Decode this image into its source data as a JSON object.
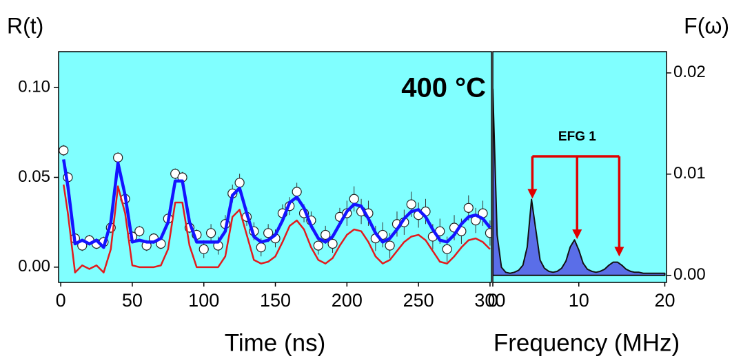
{
  "chart_data": [
    {
      "type": "line",
      "ylabel": "R(t)",
      "xlabel": "Time (ns)",
      "background": "#80ffff",
      "annotation": {
        "text": "400 °C"
      },
      "xlim": [
        -1.5,
        301
      ],
      "xticks": [
        0,
        50,
        100,
        150,
        200,
        250,
        300
      ],
      "ylim": [
        -0.0085,
        0.12
      ],
      "yticks": [
        {
          "value": 0,
          "label": "0.00"
        },
        0.05,
        {
          "value": 0.1,
          "label": "0.10"
        }
      ],
      "x": [
        2,
        5,
        10,
        15,
        20,
        25,
        30,
        35,
        40,
        45,
        50,
        55,
        60,
        65,
        70,
        75,
        80,
        85,
        90,
        95,
        100,
        105,
        110,
        115,
        120,
        125,
        130,
        135,
        140,
        145,
        150,
        155,
        160,
        165,
        170,
        175,
        180,
        185,
        190,
        195,
        200,
        205,
        210,
        215,
        220,
        225,
        230,
        235,
        240,
        245,
        250,
        255,
        260,
        265,
        270,
        275,
        280,
        285,
        290,
        295,
        300
      ],
      "series": [
        {
          "type": "scatter",
          "color": "#ffffff",
          "values": [
            0.065,
            0.05,
            0.016,
            0.012,
            0.015,
            0.013,
            0.014,
            0.022,
            0.061,
            0.038,
            0.017,
            0.02,
            0.012,
            0.016,
            0.013,
            0.027,
            0.052,
            0.05,
            0.022,
            0.018,
            0.01,
            0.019,
            0.012,
            0.024,
            0.041,
            0.047,
            0.028,
            0.02,
            0.011,
            0.019,
            0.016,
            0.03,
            0.034,
            0.042,
            0.03,
            0.026,
            0.012,
            0.018,
            0.013,
            0.028,
            0.03,
            0.038,
            0.031,
            0.03,
            0.016,
            0.018,
            0.012,
            0.024,
            0.025,
            0.035,
            0.029,
            0.031,
            0.017,
            0.02,
            0.01,
            0.022,
            0.02,
            0.033,
            0.026,
            0.03,
            0.019
          ],
          "errors": [
            0.003,
            0.003,
            0.003,
            0.003,
            0.003,
            0.003,
            0.003,
            0.003,
            0.003,
            0.003,
            0.003,
            0.003,
            0.003,
            0.003,
            0.003,
            0.003,
            0.003,
            0.003,
            0.003,
            0.003,
            0.005,
            0.005,
            0.005,
            0.005,
            0.005,
            0.005,
            0.005,
            0.005,
            0.005,
            0.005,
            0.005,
            0.005,
            0.005,
            0.005,
            0.005,
            0.005,
            0.005,
            0.005,
            0.005,
            0.005,
            0.007,
            0.007,
            0.007,
            0.007,
            0.007,
            0.007,
            0.007,
            0.007,
            0.007,
            0.007,
            0.007,
            0.007,
            0.007,
            0.007,
            0.007,
            0.007,
            0.007,
            0.007,
            0.007,
            0.007,
            0.007
          ]
        },
        {
          "type": "line",
          "color": "#e31a1c",
          "width": 2.5,
          "values": [
            0.046,
            0.03,
            -0.003,
            0.001,
            -0.001,
            0.001,
            -0.003,
            0.01,
            0.045,
            0.03,
            0.001,
            0.0,
            0.0,
            0.0,
            0.001,
            0.01,
            0.036,
            0.036,
            0.012,
            0.0,
            0.0,
            0.0,
            0.0,
            0.006,
            0.028,
            0.032,
            0.018,
            0.004,
            0.002,
            0.003,
            0.006,
            0.014,
            0.023,
            0.026,
            0.021,
            0.011,
            0.004,
            0.002,
            0.005,
            0.012,
            0.018,
            0.021,
            0.02,
            0.014,
            0.006,
            0.002,
            0.004,
            0.009,
            0.014,
            0.017,
            0.018,
            0.015,
            0.009,
            0.003,
            0.002,
            0.006,
            0.011,
            0.015,
            0.016,
            0.014,
            0.01
          ]
        },
        {
          "type": "line",
          "color": "#1414ff",
          "width": 4.5,
          "values": [
            0.06,
            0.045,
            0.013,
            0.015,
            0.013,
            0.015,
            0.011,
            0.025,
            0.058,
            0.04,
            0.014,
            0.015,
            0.014,
            0.014,
            0.016,
            0.025,
            0.048,
            0.048,
            0.025,
            0.014,
            0.014,
            0.014,
            0.014,
            0.02,
            0.04,
            0.044,
            0.03,
            0.017,
            0.014,
            0.015,
            0.018,
            0.026,
            0.036,
            0.039,
            0.033,
            0.023,
            0.016,
            0.014,
            0.017,
            0.024,
            0.031,
            0.035,
            0.034,
            0.027,
            0.019,
            0.014,
            0.016,
            0.021,
            0.027,
            0.031,
            0.032,
            0.028,
            0.021,
            0.015,
            0.014,
            0.018,
            0.024,
            0.028,
            0.029,
            0.027,
            0.022
          ]
        }
      ]
    },
    {
      "type": "area",
      "ylabel": "F(ω)",
      "xlabel": "Frequency (MHz)",
      "background": "#80ffff",
      "annotation": {
        "text": "EFG 1",
        "x": [
          4.6,
          9.8,
          14.7
        ],
        "color": "#e00000"
      },
      "xlim": [
        0,
        20.2
      ],
      "xticks": [
        0,
        10,
        20
      ],
      "ylim": [
        -0.0007,
        0.0221
      ],
      "yticks": [
        {
          "value": 0,
          "label": "0.00"
        },
        0.01,
        0.02
      ],
      "x": [
        0,
        0.5,
        1,
        1.5,
        2,
        2.5,
        3,
        3.5,
        4,
        4.5,
        5,
        5.5,
        6,
        6.5,
        7,
        7.5,
        8,
        8.5,
        9,
        9.5,
        10,
        10.5,
        11,
        11.5,
        12,
        12.5,
        13,
        13.5,
        14,
        14.5,
        15,
        15.5,
        16,
        16.5,
        17,
        17.5,
        18,
        18.5,
        19,
        19.5,
        20
      ],
      "series": [
        {
          "type": "area",
          "color": "#5a6ee8",
          "values": [
            0.0184,
            0.004,
            0.0008,
            0.0003,
            0.0002,
            0.0003,
            0.0005,
            0.001,
            0.0028,
            0.0075,
            0.0045,
            0.0015,
            0.0007,
            0.0004,
            0.0003,
            0.0004,
            0.0007,
            0.0014,
            0.0028,
            0.0035,
            0.0025,
            0.0012,
            0.0006,
            0.0004,
            0.0003,
            0.0004,
            0.0006,
            0.001,
            0.0013,
            0.0013,
            0.001,
            0.0006,
            0.0004,
            0.0003,
            0.0003,
            0.0002,
            0.0002,
            0.0002,
            0.0002,
            0.0002,
            0.0002
          ]
        }
      ]
    }
  ]
}
